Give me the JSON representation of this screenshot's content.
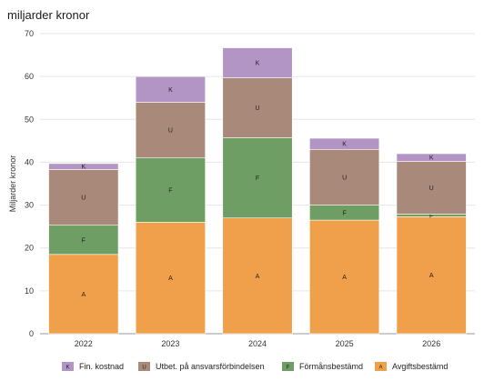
{
  "subtitle": "miljarder kronor",
  "chart_data": {
    "type": "bar",
    "stacked": true,
    "categories": [
      "2022",
      "2023",
      "2024",
      "2025",
      "2026"
    ],
    "ylabel": "Miljarder kronor",
    "ylim": [
      0,
      70
    ],
    "yticks": [
      0,
      10,
      20,
      30,
      40,
      50,
      60,
      70
    ],
    "grid": true,
    "legend_position": "bottom",
    "series": [
      {
        "name": "Avgiftsbestämd",
        "key": "A",
        "color": "#f0a04b",
        "values": [
          18.5,
          26,
          27,
          26.5,
          27.3
        ]
      },
      {
        "name": "Förmånsbestämd",
        "key": "F",
        "color": "#6e9e63",
        "values": [
          6.8,
          15,
          18.7,
          3.5,
          0.6
        ]
      },
      {
        "name": "Utbet. på ansvarsförbindelsen",
        "key": "U",
        "color": "#a8897a",
        "values": [
          13,
          13,
          14,
          13,
          12.3
        ]
      },
      {
        "name": "Fin. kostnad",
        "key": "K",
        "color": "#b295c4",
        "values": [
          1.4,
          6,
          7,
          2.6,
          1.8
        ]
      }
    ],
    "legend_order": [
      "Fin. kostnad",
      "Utbet. på ansvarsförbindelsen",
      "Förmånsbestämd",
      "Avgiftsbestämd"
    ]
  }
}
